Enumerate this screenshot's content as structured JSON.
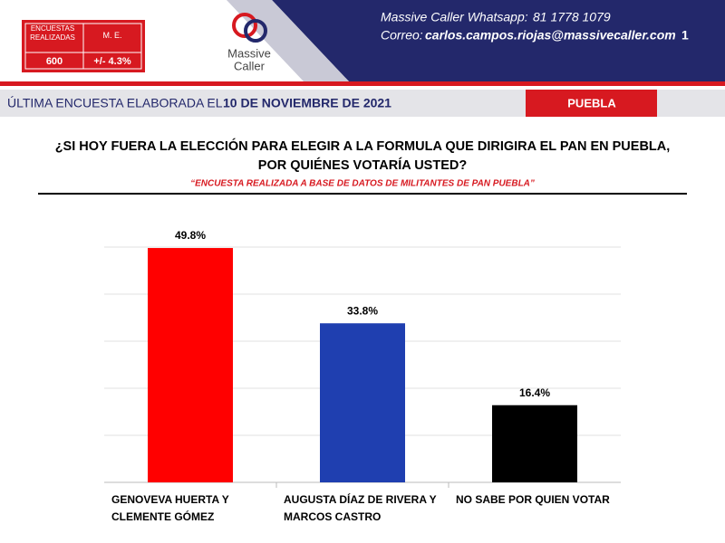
{
  "header": {
    "box": {
      "labels": [
        "ENCUESTAS\nREALIZADAS",
        "M. E."
      ],
      "values": [
        "600",
        "+/- 4.3%"
      ]
    },
    "logo": {
      "line1": "Massive",
      "line2": "Caller"
    },
    "whatsapp_label": "Massive Caller Whatsapp:",
    "whatsapp": "81 1778 1079",
    "email_label": "Correo:",
    "email": "carlos.campos.riojas@massivecaller.com",
    "page": "1"
  },
  "date_bar": {
    "label": "ÚLTIMA ENCUESTA ELABORADA EL",
    "date": "10 DE NOVIEMBRE DE 2021",
    "region": "PUEBLA"
  },
  "chart_data": {
    "type": "bar",
    "title": "¿SI HOY FUERA LA ELECCIÓN PARA ELEGIR A LA FORMULA QUE DIRIGIRA EL PAN EN PUEBLA,\nPOR QUIÉNES VOTARÍA USTED?",
    "subtitle": "“ENCUESTA REALIZADA A BASE DE DATOS DE MILITANTES DE PAN PUEBLA”",
    "categories": [
      "GENOVEVA HUERTA Y\nCLEMENTE GÓMEZ",
      "AUGUSTA DÍAZ DE RIVERA Y\nMARCOS CASTRO",
      "NO SABE POR QUIEN VOTAR"
    ],
    "values": [
      49.8,
      33.8,
      16.4
    ],
    "value_labels": [
      "49.8%",
      "33.8%",
      "16.4%"
    ],
    "colors": [
      "#ff0000",
      "#1f3fb0",
      "#000000"
    ],
    "ylim": [
      0,
      50
    ],
    "yticks": [
      0,
      10,
      20,
      30,
      40,
      50
    ],
    "grid": true
  }
}
